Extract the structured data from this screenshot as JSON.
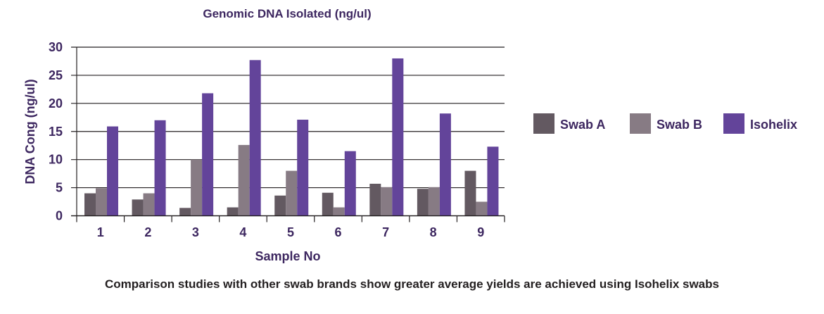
{
  "chart_data": {
    "type": "bar",
    "title": "Genomic DNA Isolated (ng/ul)",
    "xlabel": "Sample No",
    "ylabel": "DNA Cong (ng/ul)",
    "ylim": [
      0,
      30
    ],
    "yticks": [
      0,
      5,
      10,
      15,
      20,
      25,
      30
    ],
    "grid": true,
    "legend_position": "right",
    "categories": [
      "1",
      "2",
      "3",
      "4",
      "5",
      "6",
      "7",
      "8",
      "9"
    ],
    "series": [
      {
        "name": "Swab A",
        "color": "#635961",
        "values": [
          4.0,
          2.9,
          1.4,
          1.5,
          3.6,
          4.1,
          5.7,
          4.8,
          8.0
        ]
      },
      {
        "name": "Swab B",
        "color": "#877b84",
        "values": [
          4.9,
          4.0,
          10.0,
          12.6,
          8.0,
          1.5,
          5.1,
          5.1,
          2.5
        ]
      },
      {
        "name": "Isohelix",
        "color": "#63449a",
        "values": [
          15.9,
          17.0,
          21.8,
          27.7,
          17.1,
          11.5,
          28.0,
          18.2,
          12.3
        ]
      }
    ]
  },
  "caption": "Comparison studies with other swab brands show greater average yields are achieved using Isohelix swabs"
}
